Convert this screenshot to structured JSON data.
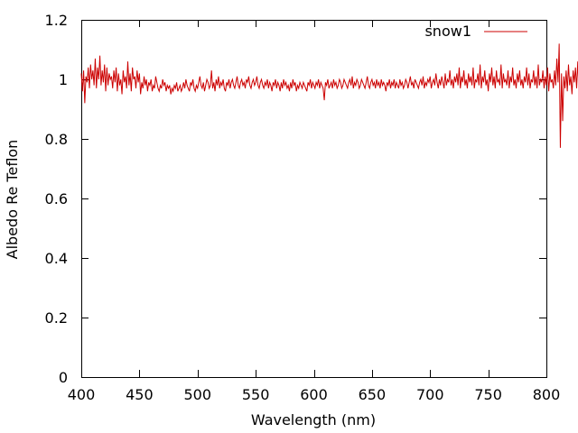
{
  "chart_data": {
    "type": "line",
    "title": "",
    "xlabel": "Wavelength (nm)",
    "ylabel": "Albedo Re Teflon",
    "xlim": [
      400,
      800
    ],
    "ylim": [
      0,
      1.2
    ],
    "xticks": [
      400,
      450,
      500,
      550,
      600,
      650,
      700,
      750,
      800
    ],
    "xtick_labels": [
      "400",
      "450",
      "500",
      "550",
      "600",
      "650",
      "700",
      "750",
      "800"
    ],
    "yticks": [
      0,
      0.2,
      0.4,
      0.6,
      0.8,
      1.0,
      1.2
    ],
    "ytick_labels": [
      "0",
      "0.2",
      "0.4",
      "0.6",
      "0.8",
      "1",
      "1.2"
    ],
    "grid": false,
    "legend": {
      "position": "top-right"
    },
    "series": [
      {
        "name": "snow1",
        "color": "#cc0000",
        "x_start": 400,
        "x_step": 1,
        "y": [
          1.02,
          0.96,
          1.03,
          0.92,
          1.01,
          0.99,
          1.04,
          0.97,
          1.05,
          1.0,
          1.03,
          0.98,
          1.07,
          0.97,
          1.04,
          1.0,
          1.08,
          0.98,
          1.03,
          0.99,
          1.05,
          0.96,
          1.04,
          0.98,
          1.02,
          1.0,
          1.01,
          0.97,
          1.03,
          0.99,
          1.04,
          0.96,
          1.02,
          0.98,
          1.0,
          0.95,
          1.03,
          0.99,
          1.01,
          0.97,
          1.06,
          0.98,
          1.02,
          0.96,
          1.04,
          1.0,
          1.01,
          0.97,
          1.03,
          0.99,
          1.02,
          0.95,
          0.99,
          0.97,
          1.01,
          0.98,
          1.0,
          0.96,
          0.99,
          0.98,
          1.0,
          0.96,
          0.98,
          0.97,
          1.01,
          0.99,
          0.97,
          0.96,
          0.98,
          0.97,
          1.0,
          0.98,
          0.99,
          0.96,
          0.98,
          0.97,
          0.98,
          0.95,
          0.97,
          0.96,
          0.98,
          0.97,
          0.99,
          0.96,
          0.97,
          0.98,
          0.96,
          0.97,
          0.99,
          0.97,
          1.0,
          0.98,
          0.97,
          0.96,
          0.99,
          0.98,
          1.0,
          0.97,
          0.96,
          0.98,
          0.97,
          0.99,
          1.01,
          0.98,
          0.97,
          0.99,
          0.96,
          0.98,
          1.0,
          0.99,
          0.97,
          0.98,
          1.03,
          0.97,
          0.99,
          0.96,
          1.0,
          0.98,
          1.01,
          0.97,
          0.99,
          0.98,
          1.0,
          0.97,
          0.96,
          0.99,
          0.98,
          1.0,
          0.97,
          0.99,
          1.0,
          0.98,
          0.97,
          0.99,
          1.01,
          0.98,
          0.97,
          0.99,
          1.0,
          0.98,
          0.99,
          0.97,
          1.0,
          0.99,
          1.01,
          0.98,
          0.97,
          0.99,
          1.0,
          0.98,
          0.99,
          1.01,
          0.98,
          0.97,
          0.99,
          1.0,
          0.98,
          0.97,
          0.99,
          0.98,
          1.0,
          0.97,
          0.99,
          0.98,
          0.96,
          0.99,
          0.98,
          1.0,
          0.97,
          0.99,
          0.98,
          0.96,
          0.99,
          0.97,
          1.0,
          0.98,
          0.99,
          0.97,
          0.98,
          0.96,
          0.99,
          0.97,
          1.0,
          0.98,
          0.99,
          0.96,
          0.98,
          0.97,
          0.99,
          0.98,
          0.97,
          0.99,
          0.98,
          0.97,
          0.96,
          0.99,
          0.98,
          1.0,
          0.97,
          0.99,
          0.98,
          0.97,
          0.99,
          0.98,
          1.0,
          0.97,
          0.99,
          0.98,
          0.97,
          0.93,
          0.99,
          0.98,
          1.0,
          0.97,
          0.98,
          0.99,
          0.97,
          1.0,
          0.98,
          0.99,
          0.97,
          0.98,
          1.0,
          0.99,
          0.97,
          0.98,
          1.0,
          0.99,
          0.98,
          0.97,
          0.99,
          1.0,
          0.98,
          1.01,
          0.97,
          0.99,
          0.98,
          1.0,
          0.99,
          0.97,
          0.98,
          1.0,
          0.99,
          0.98,
          0.97,
          0.99,
          1.01,
          0.98,
          0.97,
          0.99,
          1.0,
          0.98,
          0.99,
          0.97,
          1.0,
          0.98,
          0.99,
          0.97,
          1.0,
          0.98,
          0.99,
          0.98,
          0.96,
          0.99,
          0.98,
          1.0,
          0.97,
          0.99,
          0.98,
          1.0,
          0.97,
          0.99,
          0.98,
          0.97,
          1.0,
          0.98,
          0.99,
          0.97,
          0.98,
          1.0,
          0.99,
          0.97,
          0.99,
          1.01,
          0.98,
          0.99,
          0.97,
          1.0,
          0.99,
          0.98,
          0.97,
          0.99,
          1.0,
          0.98,
          1.01,
          0.97,
          0.99,
          0.98,
          1.0,
          0.99,
          1.01,
          0.97,
          0.99,
          1.0,
          0.98,
          1.02,
          0.99,
          0.97,
          1.0,
          0.98,
          1.01,
          0.99,
          0.97,
          1.02,
          0.98,
          1.0,
          0.99,
          1.03,
          0.98,
          1.0,
          0.97,
          1.01,
          0.99,
          1.02,
          0.98,
          1.04,
          0.97,
          1.01,
          0.99,
          1.03,
          0.98,
          1.0,
          0.97,
          1.02,
          0.99,
          1.01,
          0.98,
          1.04,
          0.97,
          1.0,
          0.99,
          1.02,
          0.98,
          1.05,
          0.97,
          1.01,
          0.99,
          1.03,
          0.98,
          1.0,
          0.96,
          1.02,
          0.99,
          1.04,
          0.98,
          1.01,
          0.97,
          1.03,
          0.99,
          1.0,
          0.98,
          1.05,
          0.97,
          1.02,
          0.99,
          1.0,
          0.98,
          1.03,
          0.97,
          1.01,
          0.99,
          1.04,
          0.98,
          1.0,
          0.97,
          1.02,
          0.99,
          1.03,
          0.98,
          1.0,
          0.97,
          1.01,
          0.99,
          1.04,
          0.98,
          1.02,
          0.97,
          1.0,
          0.99,
          1.03,
          0.98,
          1.01,
          0.97,
          1.05,
          0.98,
          1.0,
          0.99,
          1.03,
          0.97,
          1.01,
          0.98,
          1.04,
          0.96,
          1.02,
          0.99,
          1.0,
          0.97,
          1.03,
          0.98,
          1.07,
          0.99,
          1.12,
          0.77,
          1.02,
          0.86,
          1.01,
          0.97,
          1.03,
          0.96,
          1.05,
          0.98,
          1.01,
          0.95,
          1.03,
          0.99,
          1.04,
          0.97,
          1.06,
          0.96,
          1.02,
          0.99,
          1.0,
          0.95,
          1.03,
          0.98,
          1.05,
          0.96,
          1.02,
          0.99,
          1.01,
          0.94,
          1.03,
          0.97,
          1.06,
          0.98,
          1.02,
          0.95,
          1.04,
          0.97,
          1.01,
          1.05
        ]
      }
    ]
  }
}
